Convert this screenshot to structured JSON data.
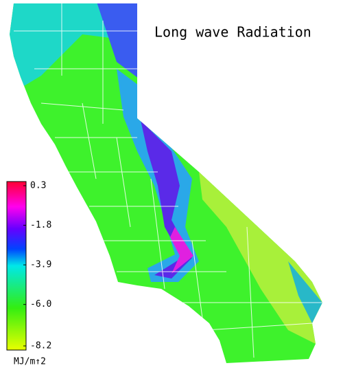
{
  "title": "Long wave Radiation",
  "colorbar": {
    "ticks": [
      0.3,
      -1.8,
      -3.9,
      {
        "value": -6,
        "label": "-6.0"
      },
      -8.2
    ],
    "unit": "MJ/m↑2"
  }
}
